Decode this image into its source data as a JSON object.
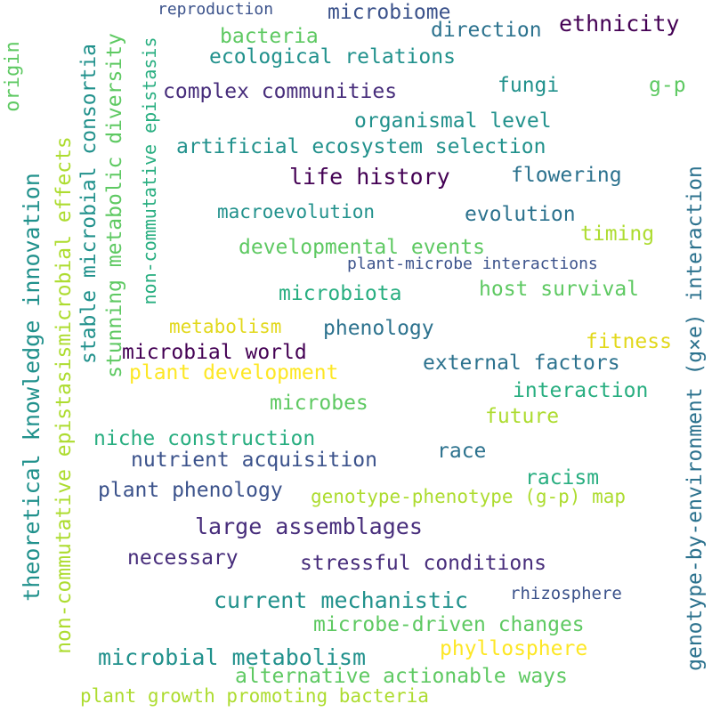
{
  "palette": {
    "dark_purple": "#440154",
    "indigo": "#472d7b",
    "slate": "#3b528b",
    "steel": "#2c728e",
    "teal": "#21918c",
    "sea_green": "#28ae80",
    "green": "#5ec962",
    "light_green": "#addc30",
    "yellow": "#fde725",
    "gold": "#e2d81b"
  },
  "words": [
    "reproduction",
    "microbiome",
    "ethnicity",
    "bacteria",
    "direction",
    "ecological relations",
    "complex communities",
    "fungi",
    "g-p",
    "organismal level",
    "artificial ecosystem selection",
    "life history",
    "flowering",
    "macroevolution",
    "evolution",
    "developmental events",
    "timing",
    "plant-microbe interactions",
    "microbiota",
    "host survival",
    "metabolism",
    "phenology",
    "microbial world",
    "fitness",
    "plant development",
    "external factors",
    "interaction",
    "microbes",
    "future",
    "niche construction",
    "race",
    "nutrient acquisition",
    "racism",
    "plant phenology",
    "genotype-phenotype (g-p) map",
    "large assemblages",
    "necessary",
    "stressful conditions",
    "current mechanistic",
    "rhizosphere",
    "microbe-driven changes",
    "phyllosphere",
    "microbial metabolism",
    "alternative actionable ways",
    "plant growth promoting bacteria",
    "origin",
    "theoretical knowledge innovation",
    "non-commutative epistasismicrobial effects",
    "stable microbial consortia",
    "stunning metabolic diversity",
    "non-commutative epistasis",
    "genotype-by-environment (g×e) interaction"
  ]
}
